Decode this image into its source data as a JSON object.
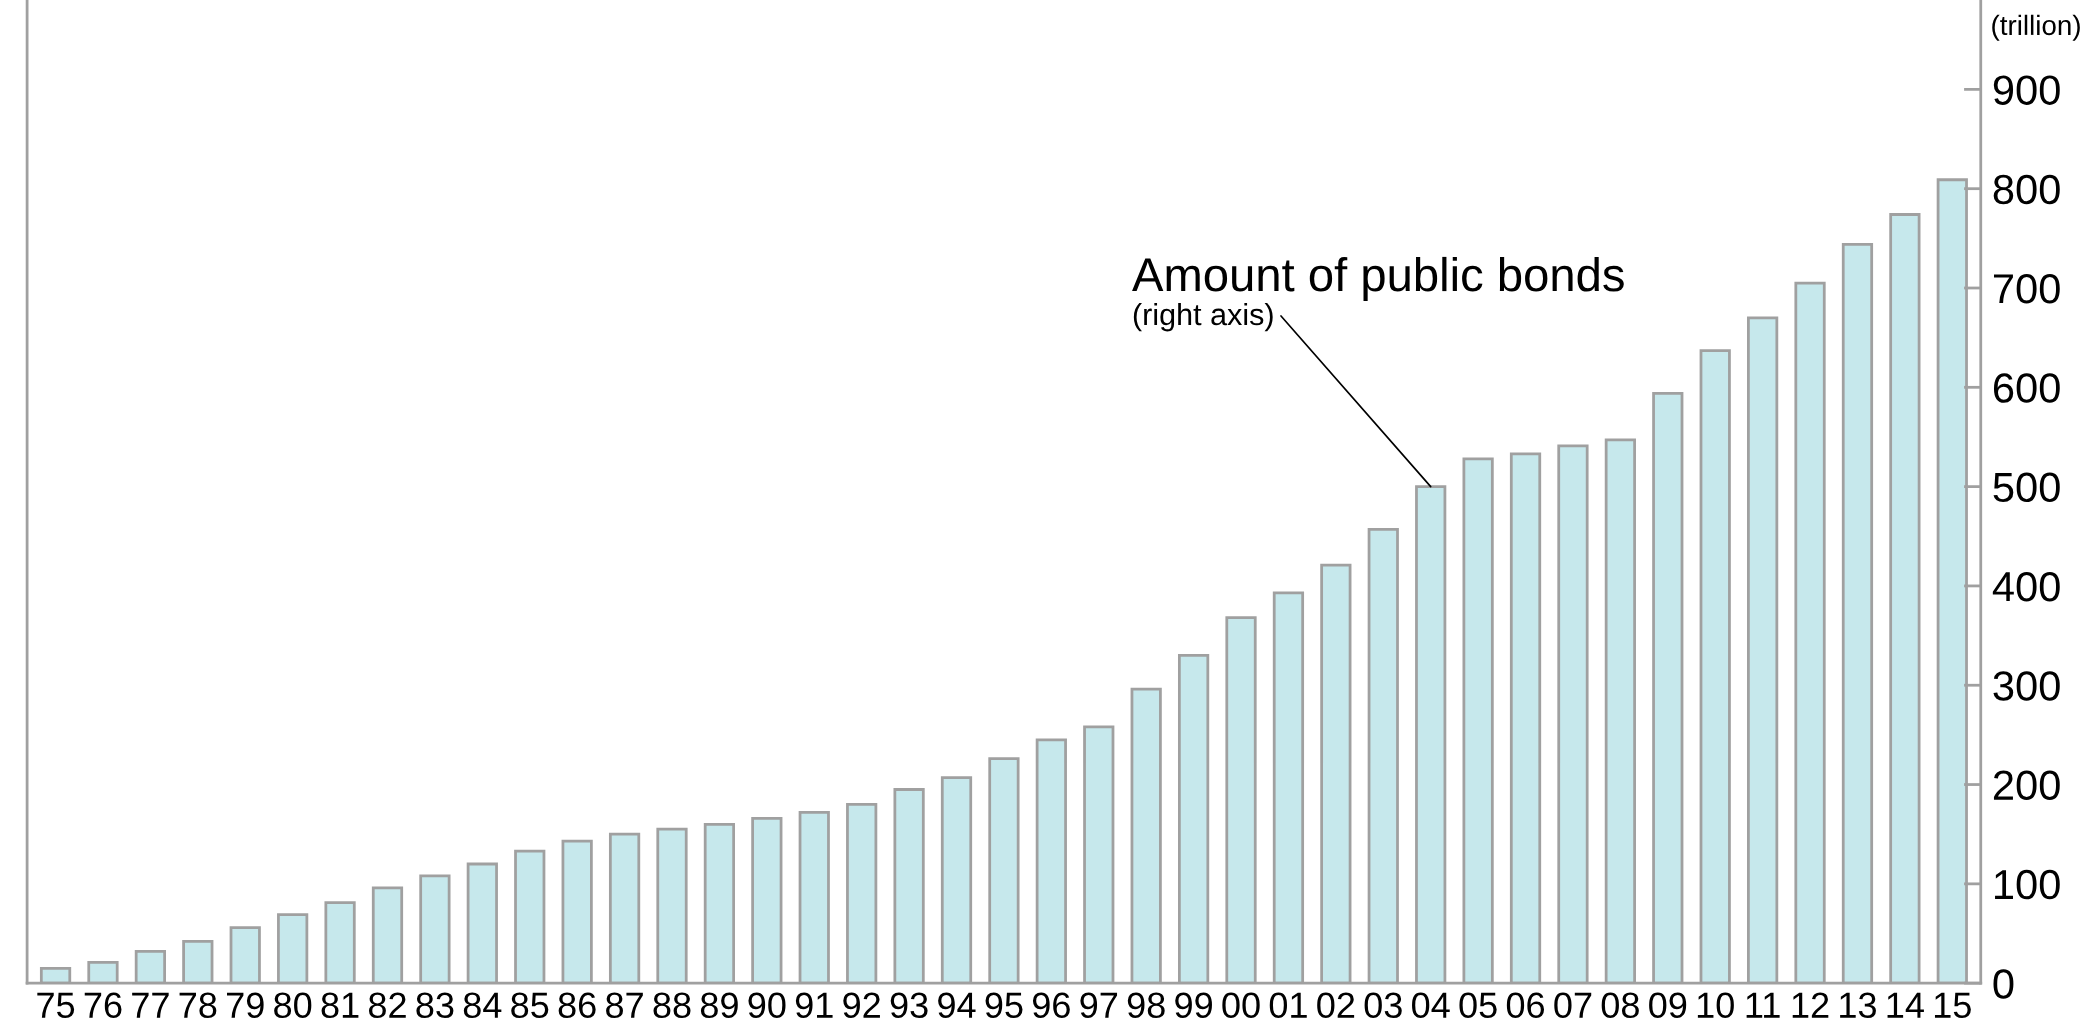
{
  "chart_data": {
    "type": "bar",
    "categories": [
      "75",
      "76",
      "77",
      "78",
      "79",
      "80",
      "81",
      "82",
      "83",
      "84",
      "85",
      "86",
      "87",
      "88",
      "89",
      "90",
      "91",
      "92",
      "93",
      "94",
      "95",
      "96",
      "97",
      "98",
      "99",
      "00",
      "01",
      "02",
      "03",
      "04",
      "05",
      "06",
      "07",
      "08",
      "09",
      "10",
      "11",
      "12",
      "13",
      "14",
      "15"
    ],
    "series": [
      {
        "color": "#c6e8ec",
        "values": [
          15,
          21,
          32,
          42,
          56,
          69,
          81,
          96,
          108,
          120,
          133,
          143,
          150,
          155,
          160,
          166,
          172,
          180,
          195,
          207,
          226,
          245,
          258,
          296,
          330,
          368,
          393,
          421,
          457,
          500,
          528,
          533,
          541,
          547,
          594,
          637,
          670,
          705,
          744,
          774,
          809
        ]
      }
    ],
    "ylabel": "(trillion)",
    "ylim": [
      0,
      990
    ],
    "yticks": [
      0,
      100,
      200,
      300,
      400,
      500,
      600,
      700,
      800,
      900
    ],
    "annotations": [
      "Amount of public bonds",
      {
        "text": "(right axis)",
        "x": "04",
        "y": 500
      }
    ],
    "grid": false,
    "legend": false
  }
}
